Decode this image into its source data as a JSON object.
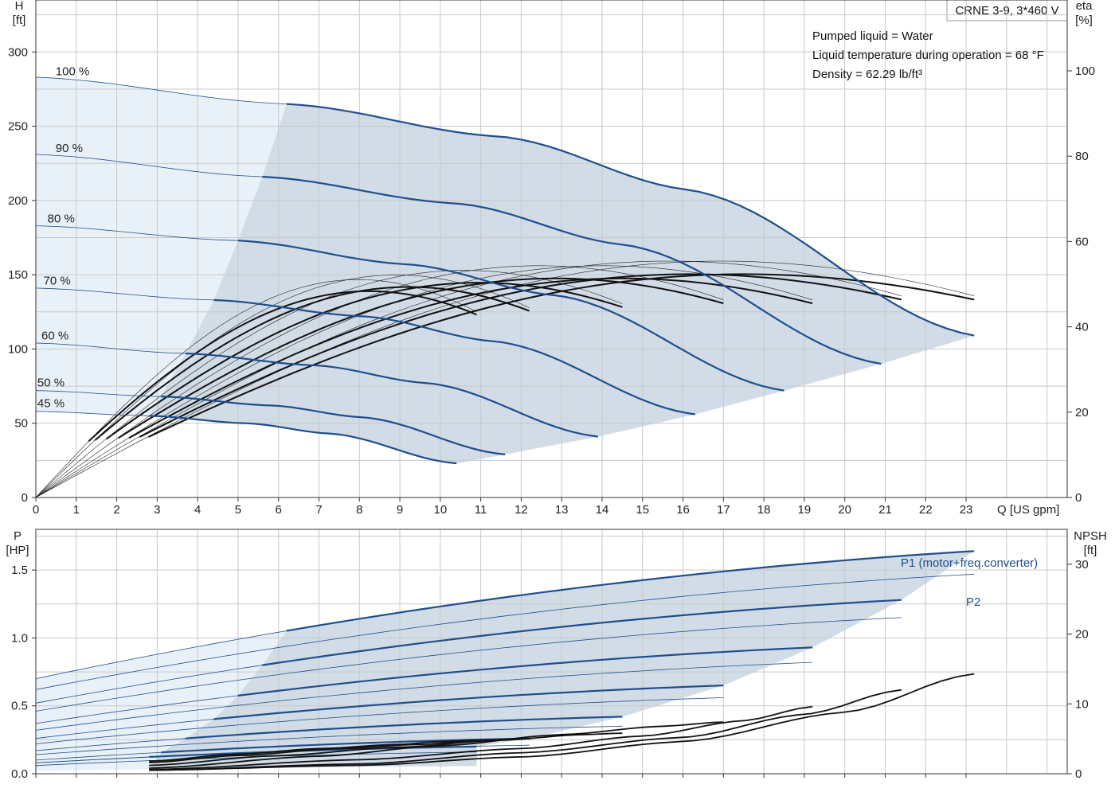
{
  "chart_data": [
    {
      "type": "line",
      "title": "CRNE 3-9, 3*460 V",
      "info": [
        "Pumped liquid = Water",
        "Liquid temperature during operation = 68 °F",
        "Density = 62.29 lb/ft³"
      ],
      "xlabel": "Q [US gpm]",
      "ylabel_line1": "H",
      "ylabel_line2": "[ft]",
      "y2label_line1": "eta",
      "y2label_line2": "[%]",
      "xlim": [
        0,
        25.5
      ],
      "ylim": [
        0,
        335
      ],
      "y2lim": [
        0,
        100
      ],
      "xticks": [
        "0",
        "1",
        "2",
        "3",
        "4",
        "5",
        "6",
        "7",
        "8",
        "9",
        "10",
        "11",
        "12",
        "13",
        "14",
        "15",
        "16",
        "17",
        "18",
        "19",
        "20",
        "21",
        "22",
        "23"
      ],
      "yticks": [
        "0",
        "50",
        "100",
        "150",
        "200",
        "250",
        "300"
      ],
      "y2ticks": [
        "0",
        "20",
        "40",
        "60",
        "80",
        "100"
      ],
      "head_series": [
        {
          "name": "100 %",
          "x": [
            0,
            6.2,
            11.5,
            16.2,
            23.2
          ],
          "y": [
            283,
            265,
            243,
            207,
            109
          ],
          "label_x": 1.0
        },
        {
          "name": "90 %",
          "x": [
            0,
            5.6,
            10.4,
            14.6,
            20.9
          ],
          "y": [
            231,
            216,
            198,
            170,
            90
          ],
          "label_x": 1.0
        },
        {
          "name": "80 %",
          "x": [
            0,
            5.0,
            9.2,
            12.9,
            18.5
          ],
          "y": [
            183,
            173,
            157,
            136,
            72
          ],
          "label_x": 0.8
        },
        {
          "name": "70 %",
          "x": [
            0,
            4.4,
            8.1,
            11.4,
            16.3
          ],
          "y": [
            141,
            133,
            122,
            105,
            56
          ],
          "label_x": 0.7
        },
        {
          "name": "60 %",
          "x": [
            0,
            3.7,
            6.9,
            9.7,
            13.9
          ],
          "y": [
            104,
            97,
            89,
            77,
            41
          ],
          "label_x": 0.65
        },
        {
          "name": "50 %",
          "x": [
            0,
            3.1,
            5.8,
            8.1,
            11.6
          ],
          "y": [
            72,
            68,
            62,
            54,
            29
          ],
          "label_x": 0.55
        },
        {
          "name": "45 %",
          "x": [
            0,
            2.8,
            5.2,
            7.3,
            10.4
          ],
          "y": [
            58,
            55,
            50,
            43,
            23
          ],
          "label_x": 0.55
        }
      ],
      "eta_series": [
        {
          "name": "eta 100 %",
          "qmax": 23.2,
          "peak": 51
        },
        {
          "name": "eta 90 %",
          "qmax": 21.4,
          "peak": 51
        },
        {
          "name": "eta 80 %",
          "qmax": 19.2,
          "peak": 50
        },
        {
          "name": "eta 70 %",
          "qmax": 17.0,
          "peak": 50
        },
        {
          "name": "eta 60 %",
          "qmax": 14.5,
          "peak": 49
        },
        {
          "name": "eta 50 %",
          "qmax": 12.2,
          "peak": 48
        },
        {
          "name": "eta 45 %",
          "qmax": 10.9,
          "peak": 47
        }
      ],
      "eta_ref_peak": 57,
      "colors": {
        "region_dark": "#d1dce7",
        "region_light": "#e9f1f8",
        "curve_blue": "#1f4e8c",
        "grid": "#c8c8c8"
      }
    },
    {
      "type": "line",
      "xlabel": "",
      "ylabel_line1": "P",
      "ylabel_line2": "[HP]",
      "y2label_line1": "NPSH",
      "y2label_line2": "[ft]",
      "xlim": [
        0,
        25.5
      ],
      "ylim": [
        0,
        1.8
      ],
      "y2lim": [
        0,
        35
      ],
      "yticks": [
        "0.0",
        "0.5",
        "1.0",
        "1.5"
      ],
      "y2ticks": [
        "0",
        "10",
        "20",
        "30"
      ],
      "p1_label": "P1 (motor+freq.converter)",
      "p2_label": "P2",
      "p1_series": [
        {
          "name": "P1 100 %",
          "qmax": 23.2,
          "p0": 0.7,
          "pmax": 1.64
        },
        {
          "name": "P1 90 %",
          "qmax": 21.4,
          "p0": 0.52,
          "pmax": 1.28
        },
        {
          "name": "P1 80 %",
          "qmax": 19.2,
          "p0": 0.37,
          "pmax": 0.93
        },
        {
          "name": "P1 70 %",
          "qmax": 17.0,
          "p0": 0.26,
          "pmax": 0.65
        },
        {
          "name": "P1 60 %",
          "qmax": 14.5,
          "p0": 0.17,
          "pmax": 0.42
        },
        {
          "name": "P1 50 %",
          "qmax": 12.2,
          "p0": 0.1,
          "pmax": 0.26
        },
        {
          "name": "P1 45 %",
          "qmax": 10.9,
          "p0": 0.08,
          "pmax": 0.2
        }
      ],
      "p2_series": [
        {
          "name": "P2 100 %",
          "qmax": 23.2,
          "p0": 0.62,
          "pmax": 1.47
        },
        {
          "name": "P2 90 %",
          "qmax": 21.4,
          "p0": 0.46,
          "pmax": 1.15
        },
        {
          "name": "P2 80 %",
          "qmax": 19.2,
          "p0": 0.32,
          "pmax": 0.82
        },
        {
          "name": "P2 70 %",
          "qmax": 17.0,
          "p0": 0.22,
          "pmax": 0.56
        },
        {
          "name": "P2 60 %",
          "qmax": 14.5,
          "p0": 0.14,
          "pmax": 0.35
        },
        {
          "name": "P2 50 %",
          "qmax": 12.2,
          "p0": 0.08,
          "pmax": 0.21
        },
        {
          "name": "P2 45 %",
          "qmax": 10.9,
          "p0": 0.06,
          "pmax": 0.16
        }
      ],
      "npsh_series": [
        {
          "name": "NPSH 100 %",
          "x": [
            2.8,
            8,
            12,
            16,
            20,
            23.2
          ],
          "y": [
            0.5,
            1.2,
            2.4,
            4.6,
            8.8,
            14.3
          ]
        },
        {
          "name": "NPSH 90 %",
          "x": [
            2.8,
            8,
            12,
            16,
            19,
            21.4
          ],
          "y": [
            0.5,
            1.4,
            3.0,
            5.2,
            8.5,
            12.0
          ]
        },
        {
          "name": "NPSH 80 %",
          "x": [
            2.8,
            8,
            12,
            15,
            17.5,
            19.2
          ],
          "y": [
            0.6,
            2.0,
            3.6,
            5.4,
            7.6,
            9.6
          ]
        },
        {
          "name": "NPSH 70 %",
          "x": [
            2.8,
            7,
            10,
            13,
            15.5,
            17.0
          ],
          "y": [
            0.8,
            2.5,
            4.0,
            5.6,
            6.8,
            7.4
          ]
        },
        {
          "name": "NPSH 60 %",
          "x": [
            2.8,
            6,
            9,
            11.5,
            13.5,
            14.5
          ],
          "y": [
            1.2,
            2.6,
            3.8,
            4.8,
            5.6,
            5.8
          ]
        },
        {
          "name": "NPSH 50 %",
          "x": [
            2.8,
            5,
            7.5,
            9.5,
            11,
            12.2
          ],
          "y": [
            1.6,
            2.6,
            3.6,
            4.2,
            4.8,
            5.0
          ]
        },
        {
          "name": "NPSH 45 %",
          "x": [
            2.8,
            5,
            7,
            9,
            10,
            10.9
          ],
          "y": [
            1.8,
            2.8,
            3.6,
            4.2,
            4.6,
            4.8
          ]
        }
      ]
    }
  ]
}
